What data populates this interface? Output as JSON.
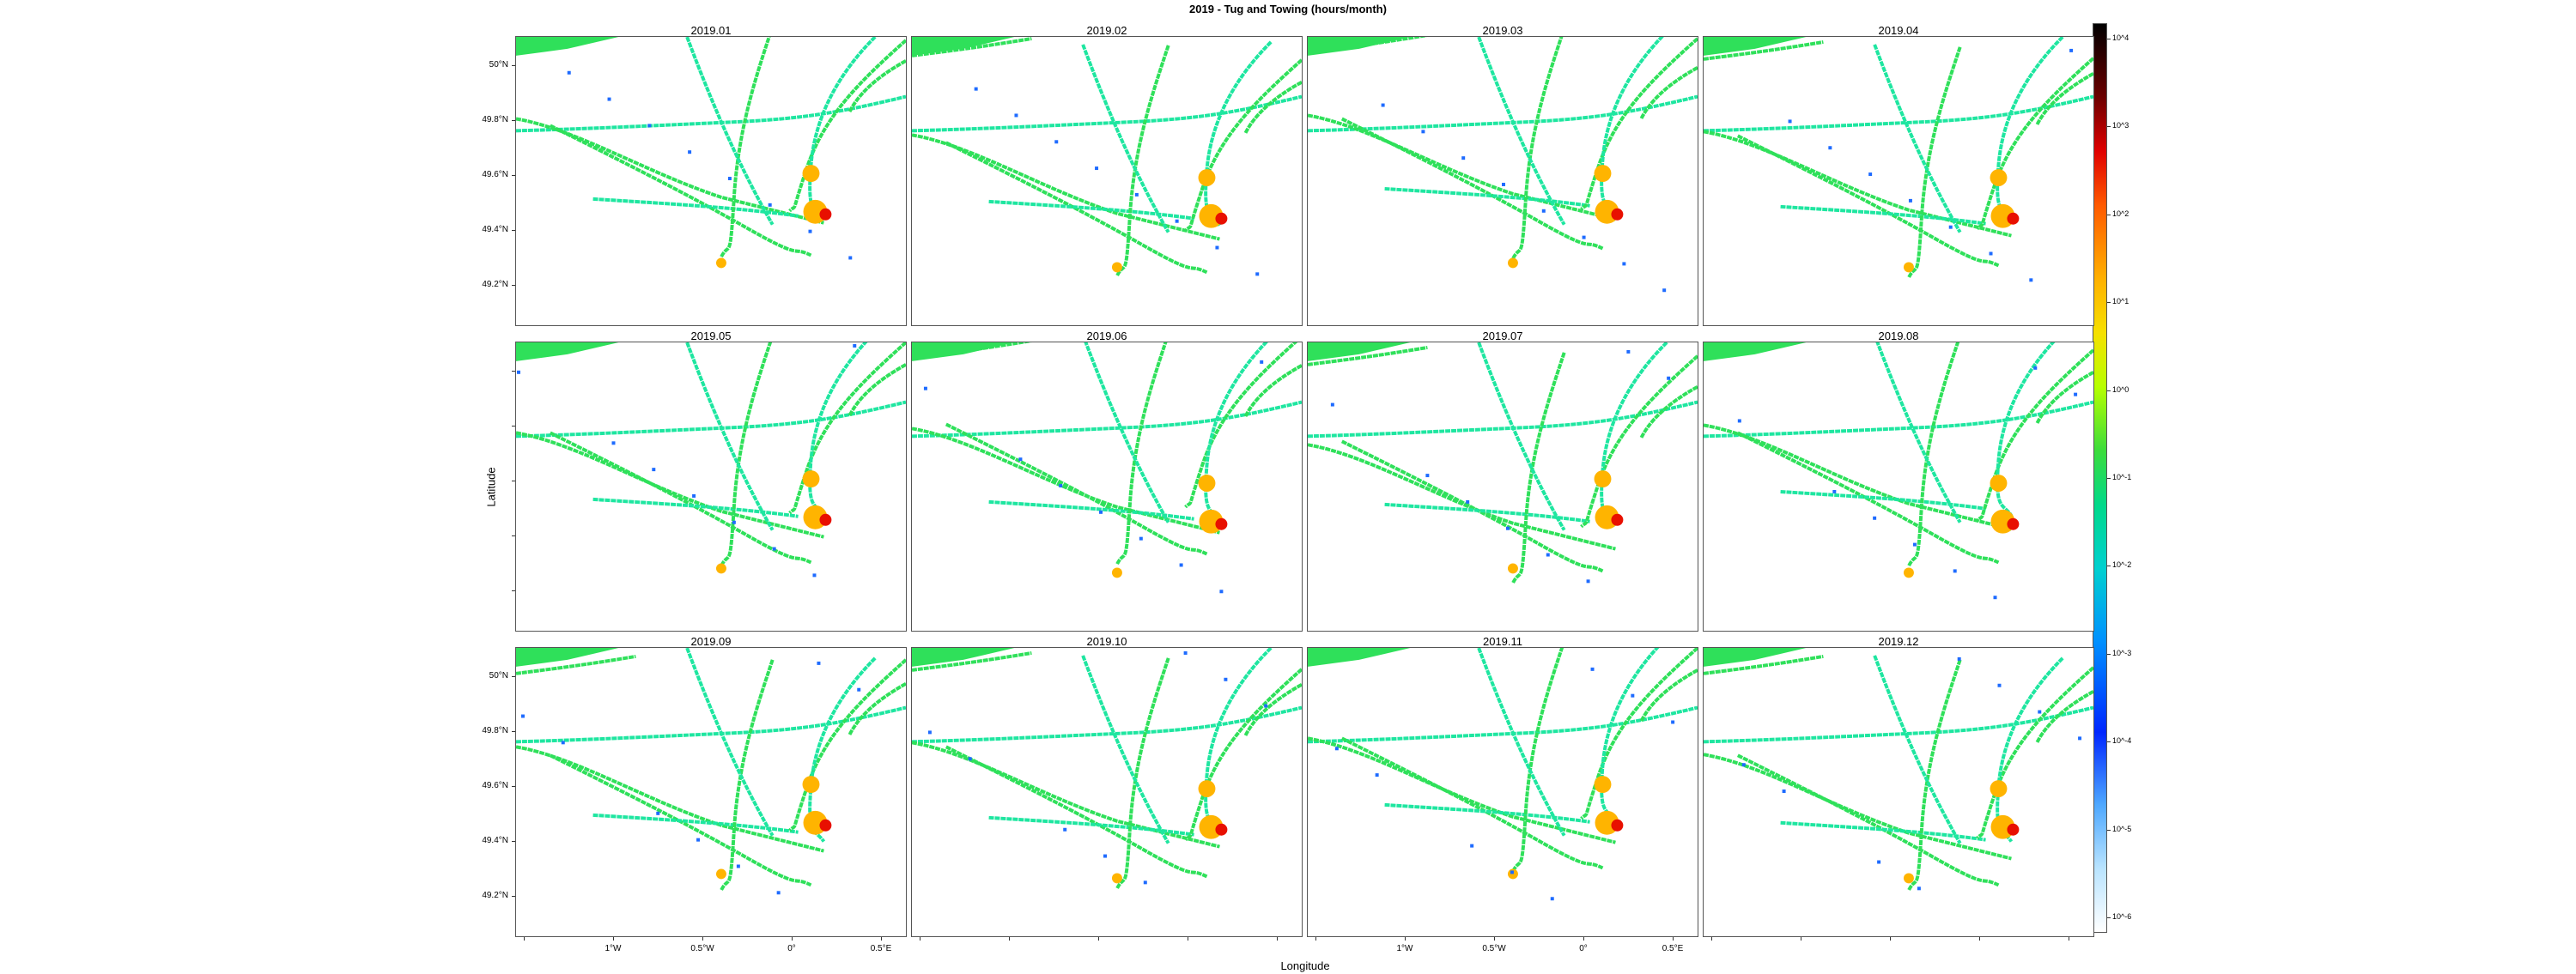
{
  "title": "2019 - Tug and Towing (hours/month)",
  "axis": {
    "xlabel": "Longitude",
    "ylabel": "Latitude"
  },
  "panels": [
    {
      "label": "2019.01"
    },
    {
      "label": "2019.02"
    },
    {
      "label": "2019.03"
    },
    {
      "label": "2019.04"
    },
    {
      "label": "2019.05"
    },
    {
      "label": "2019.06"
    },
    {
      "label": "2019.07"
    },
    {
      "label": "2019.08"
    },
    {
      "label": "2019.09"
    },
    {
      "label": "2019.10"
    },
    {
      "label": "2019.11"
    },
    {
      "label": "2019.12"
    }
  ],
  "lat_ticks": [
    "50°N",
    "49.8°N",
    "49.6°N",
    "49.4°N",
    "49.2°N"
  ],
  "lon_ticks": [
    "1°W",
    "0.5°W",
    "0°",
    "0.5°E"
  ],
  "colorbar": {
    "labels": [
      "10^4",
      "10^3",
      "10^2",
      "10^1",
      "10^0",
      "10^-1",
      "10^-2",
      "10^-3",
      "10^-4",
      "10^-5",
      "10^-6"
    ]
  },
  "colors": {
    "track": "#2fe05a",
    "track_alt": "#1ee6a0",
    "hot": "#ffb400",
    "peak": "#e81000",
    "low": "#1e6bff"
  }
}
